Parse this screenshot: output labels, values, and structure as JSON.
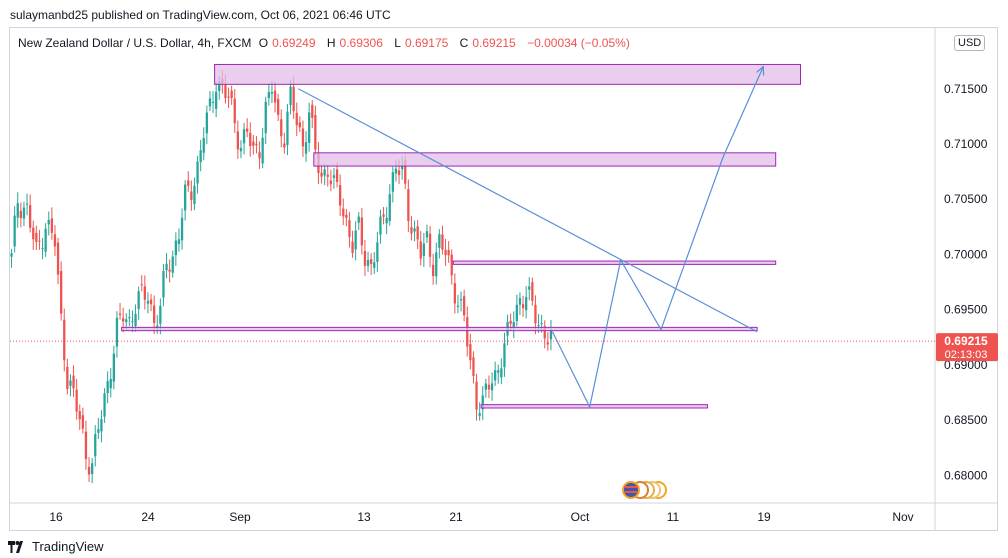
{
  "header": {
    "publisher_line": "sulaymanbd25 published on TradingView.com, Oct 06, 2021 06:46 UTC"
  },
  "symbol": {
    "name": "New Zealand Dollar / U.S. Dollar, 4h, FXCM",
    "open_label": "O",
    "open": "0.69249",
    "high_label": "H",
    "high": "0.69306",
    "low_label": "L",
    "low": "0.69175",
    "close_label": "C",
    "close": "0.69215",
    "change": "−0.00034 (−0.05%)"
  },
  "currency_badge": "USD",
  "footer": {
    "brand": "TradingView"
  },
  "colors": {
    "up": "#26a69a",
    "down": "#ef5350",
    "zone_fill": "#e1bee7",
    "zone_border": "#9c27b0",
    "trendline": "#5b8fd9",
    "price_tag": "#ef5350"
  },
  "chart_data": {
    "type": "candlestick",
    "interval": "4h",
    "x_tick_labels": [
      "16",
      "24",
      "Sep",
      "13",
      "21",
      "Oct",
      "11",
      "19",
      "Nov"
    ],
    "y_tick_labels": [
      "0.71500",
      "0.71000",
      "0.70500",
      "0.70000",
      "0.69500",
      "0.69000",
      "0.68500",
      "0.68000"
    ],
    "ylim": [
      0.6775,
      0.7205
    ],
    "last_price": "0.69215",
    "countdown": "02:13:03",
    "close_path": [
      [
        0,
        0.6995
      ],
      [
        2,
        0.705
      ],
      [
        5,
        0.704
      ],
      [
        8,
        0.7
      ],
      [
        11,
        0.703
      ],
      [
        14,
        0.701
      ],
      [
        16,
        0.694
      ],
      [
        18,
        0.689
      ],
      [
        20,
        0.687
      ],
      [
        22,
        0.685
      ],
      [
        24,
        0.682
      ],
      [
        26,
        0.681
      ],
      [
        28,
        0.684
      ],
      [
        30,
        0.687
      ],
      [
        32,
        0.69
      ],
      [
        34,
        0.693
      ],
      [
        36,
        0.6945
      ],
      [
        38,
        0.694
      ],
      [
        40,
        0.6955
      ],
      [
        42,
        0.696
      ],
      [
        44,
        0.6965
      ],
      [
        46,
        0.694
      ],
      [
        48,
        0.695
      ],
      [
        50,
        0.699
      ],
      [
        52,
        0.7
      ],
      [
        54,
        0.702
      ],
      [
        56,
        0.705
      ],
      [
        58,
        0.706
      ],
      [
        60,
        0.708
      ],
      [
        62,
        0.711
      ],
      [
        64,
        0.713
      ],
      [
        66,
        0.716
      ],
      [
        68,
        0.715
      ],
      [
        70,
        0.714
      ],
      [
        72,
        0.712
      ],
      [
        74,
        0.71
      ],
      [
        76,
        0.711
      ],
      [
        78,
        0.709
      ],
      [
        80,
        0.71
      ],
      [
        82,
        0.713
      ],
      [
        84,
        0.715
      ],
      [
        86,
        0.712
      ],
      [
        88,
        0.711
      ],
      [
        90,
        0.714
      ],
      [
        92,
        0.712
      ],
      [
        94,
        0.71
      ],
      [
        96,
        0.713
      ],
      [
        98,
        0.709
      ],
      [
        100,
        0.707
      ],
      [
        102,
        0.708
      ],
      [
        104,
        0.706
      ],
      [
        106,
        0.705
      ],
      [
        108,
        0.703
      ],
      [
        110,
        0.701
      ],
      [
        112,
        0.702
      ],
      [
        114,
        0.7
      ],
      [
        116,
        0.699
      ],
      [
        118,
        0.701
      ],
      [
        120,
        0.703
      ],
      [
        122,
        0.706
      ],
      [
        124,
        0.708
      ],
      [
        126,
        0.707
      ],
      [
        128,
        0.704
      ],
      [
        130,
        0.702
      ],
      [
        132,
        0.7
      ],
      [
        134,
        0.701
      ],
      [
        136,
        0.6995
      ],
      [
        138,
        0.701
      ],
      [
        140,
        0.7
      ],
      [
        142,
        0.698
      ],
      [
        144,
        0.696
      ],
      [
        146,
        0.694
      ],
      [
        148,
        0.69
      ],
      [
        150,
        0.687
      ],
      [
        152,
        0.6865
      ],
      [
        154,
        0.688
      ],
      [
        156,
        0.689
      ],
      [
        158,
        0.691
      ],
      [
        160,
        0.6925
      ],
      [
        162,
        0.6945
      ],
      [
        164,
        0.696
      ],
      [
        166,
        0.6965
      ],
      [
        168,
        0.695
      ],
      [
        170,
        0.694
      ],
      [
        172,
        0.693
      ],
      [
        174,
        0.69215
      ]
    ],
    "zones": [
      {
        "from_bar": 66,
        "to_bar": 255,
        "low": 0.7154,
        "high": 0.7172
      },
      {
        "from_bar": 98,
        "to_bar": 247,
        "low": 0.708,
        "high": 0.7092
      },
      {
        "from_bar": 143,
        "to_bar": 247,
        "low": 0.6991,
        "high": 0.6994
      },
      {
        "from_bar": 36,
        "to_bar": 241,
        "low": 0.6931,
        "high": 0.6934
      },
      {
        "from_bar": 152,
        "to_bar": 225,
        "low": 0.6861,
        "high": 0.6864
      }
    ],
    "trendline": [
      [
        93,
        0.715
      ],
      [
        241,
        0.693
      ]
    ],
    "projection": [
      [
        175,
        0.693
      ],
      [
        187,
        0.6862
      ],
      [
        197,
        0.6995
      ],
      [
        210,
        0.6932
      ],
      [
        230,
        0.7088
      ],
      [
        243,
        0.717
      ]
    ]
  }
}
